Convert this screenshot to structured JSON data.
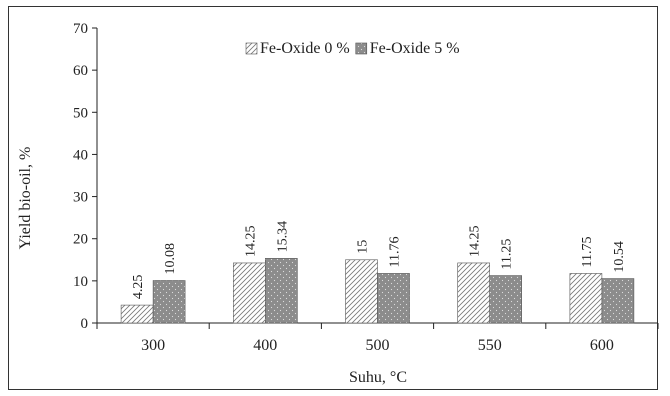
{
  "chart_data": {
    "type": "bar",
    "xlabel": "Suhu, °C",
    "ylabel": "Yield bio-oil,  %",
    "ylim": [
      0,
      70
    ],
    "yticks": [
      0,
      10,
      20,
      30,
      40,
      50,
      60,
      70
    ],
    "categories": [
      "300",
      "400",
      "500",
      "550",
      "600"
    ],
    "series": [
      {
        "name": "Fe-Oxide 0 %",
        "values": [
          4.25,
          14.25,
          15,
          14.25,
          11.75
        ],
        "labels": [
          "4.25",
          "14.25",
          "15",
          "14.25",
          "11.75"
        ],
        "pattern": "diagonal-hatch"
      },
      {
        "name": "Fe-Oxide 5 %",
        "values": [
          10.08,
          15.34,
          11.76,
          11.25,
          10.54
        ],
        "labels": [
          "10.08",
          "15.34",
          "11.76",
          "11.25",
          "10.54"
        ],
        "pattern": "dotted-gray"
      }
    ],
    "legend_position": "top-center",
    "grid": false,
    "colors": {
      "series0_fill": "#ffffff",
      "series0_hatch": "#777777",
      "series1_fill": "#8c8c8c",
      "series1_dots": "#dddddd",
      "axis": "#222222"
    }
  }
}
